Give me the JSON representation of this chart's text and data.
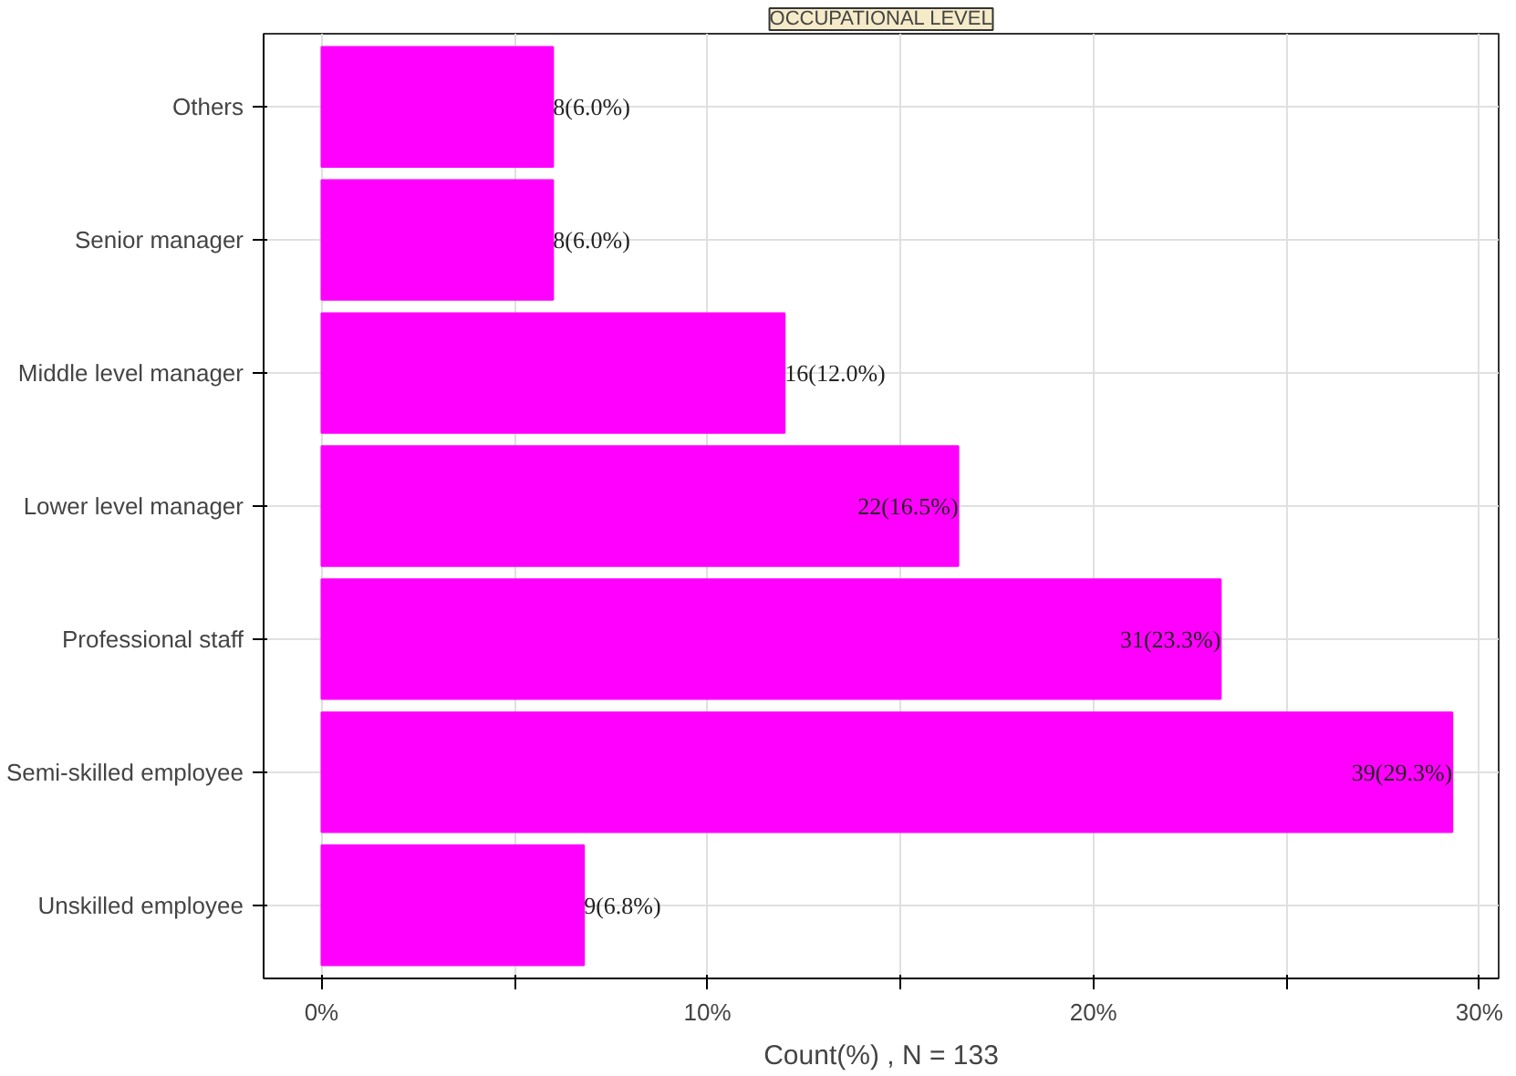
{
  "chart_data": {
    "type": "bar",
    "orientation": "horizontal",
    "title": "OCCUPATIONAL LEVEL",
    "xlabel": "Count(%) , N = 133",
    "categories": [
      "Others",
      "Senior manager",
      "Middle level manager",
      "Lower level manager",
      "Professional staff",
      "Semi-skilled employee",
      "Unskilled employee"
    ],
    "values": [
      6.0,
      6.0,
      12.0,
      16.5,
      23.3,
      29.3,
      6.8
    ],
    "value_labels": [
      "8(6.0%)",
      "8(6.0%)",
      "16(12.0%)",
      "22(16.5%)",
      "31(23.3%)",
      "39(29.3%)",
      "9(6.8%)"
    ],
    "color": "#ff00ff",
    "xlim": [
      -1.5,
      30.5
    ],
    "xticks": [
      {
        "value": 0,
        "label": "0%"
      },
      {
        "value": 5,
        "label": null
      },
      {
        "value": 10,
        "label": "10%"
      },
      {
        "value": 15,
        "label": null
      },
      {
        "value": 20,
        "label": "20%"
      },
      {
        "value": 25,
        "label": null
      },
      {
        "value": 30,
        "label": "30%"
      }
    ],
    "grid": true
  }
}
